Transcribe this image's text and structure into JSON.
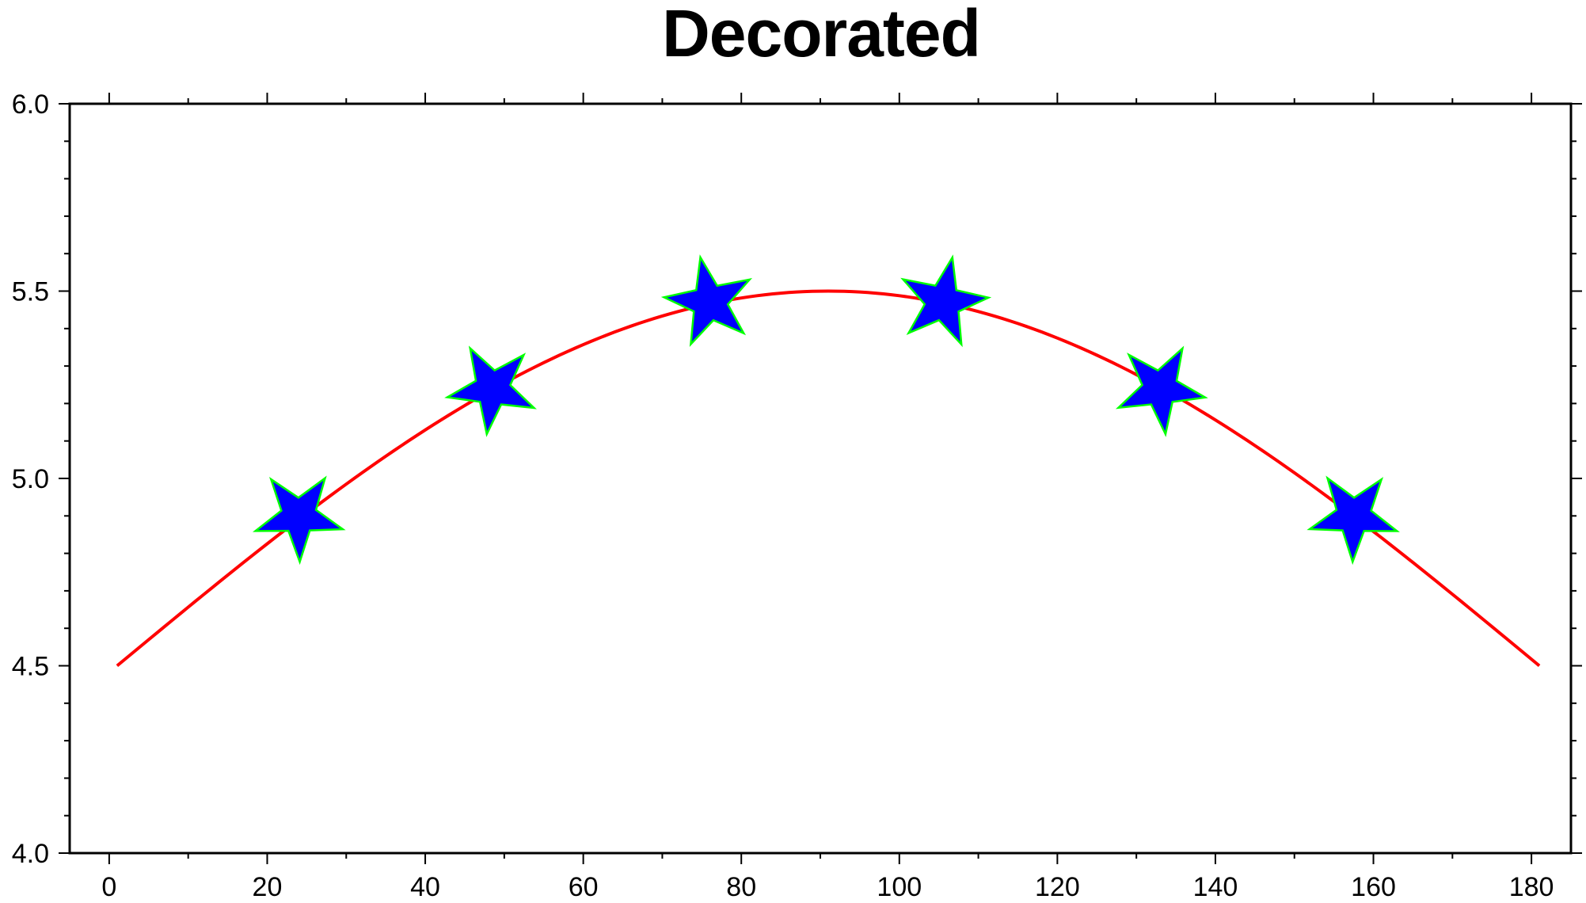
{
  "chart_data": {
    "type": "line",
    "title": "Decorated",
    "xlabel": "",
    "ylabel": "",
    "xlim": [
      -5,
      185
    ],
    "ylim": [
      4.0,
      6.0
    ],
    "x_ticks": [
      0,
      20,
      40,
      60,
      80,
      100,
      120,
      140,
      160,
      180
    ],
    "x_tick_labels": [
      "0",
      "20",
      "40",
      "60",
      "80",
      "100",
      "120",
      "140",
      "160",
      "180"
    ],
    "x_minor_step": 10,
    "y_ticks": [
      4.0,
      4.5,
      5.0,
      5.5,
      6.0
    ],
    "y_tick_labels": [
      "4.0",
      "4.5",
      "5.0",
      "5.5",
      "6.0"
    ],
    "y_minor_step": 0.1,
    "grid": false,
    "series": [
      {
        "line_color": "#ff0000",
        "function": "y = 4.5 + sin((x - 1) * pi / 180)",
        "x_range": [
          1,
          181
        ]
      }
    ],
    "decorations": {
      "symbol": "star",
      "fill_color": "#0000ff",
      "outline_color": "#00ff00",
      "x": [
        24,
        48.5,
        76,
        105.5,
        133,
        157.5
      ],
      "y": [
        4.9,
        5.24,
        5.47,
        5.47,
        5.24,
        4.9
      ]
    }
  }
}
